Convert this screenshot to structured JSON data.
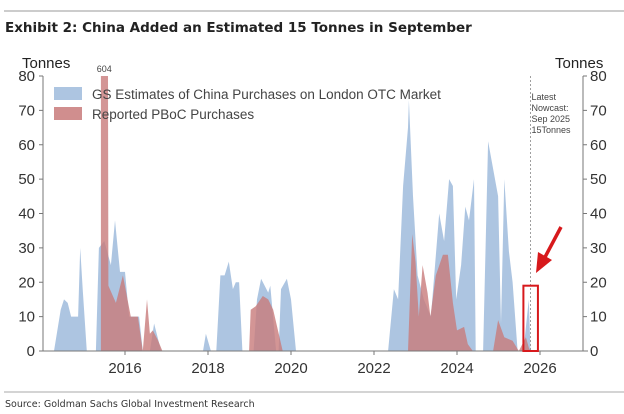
{
  "chart_data": {
    "type": "area",
    "title": "Exhibit 2: China Added an Estimated 15 Tonnes in September",
    "source": "Source: Goldman Sachs Global Investment Research",
    "ylabel_left": "Tonnes",
    "ylabel_right": "Tonnes",
    "xlim": [
      2014,
      2027
    ],
    "ylim": [
      0,
      80
    ],
    "xticks": [
      "2016",
      "2018",
      "2020",
      "2022",
      "2024",
      "2026"
    ],
    "yticks": [
      "0",
      "10",
      "20",
      "30",
      "40",
      "50",
      "60",
      "70",
      "80"
    ],
    "grid": false,
    "legend_placement": "top-left",
    "colors": {
      "gs": "#9fbbdc",
      "pboc": "#c87a7a",
      "highlight": "#d7191c"
    },
    "series": [
      {
        "name": "GS Estimates of China Purchases on London OTC Market",
        "points": [
          [
            2014.29,
            0
          ],
          [
            2014.45,
            12
          ],
          [
            2014.53,
            15
          ],
          [
            2014.62,
            14
          ],
          [
            2014.7,
            10
          ],
          [
            2014.87,
            10
          ],
          [
            2014.92,
            30
          ],
          [
            2014.98,
            18
          ],
          [
            2015.08,
            0
          ],
          [
            2015.3,
            0
          ],
          [
            2015.37,
            30
          ],
          [
            2015.5,
            32
          ],
          [
            2015.66,
            25
          ],
          [
            2015.76,
            38
          ],
          [
            2015.88,
            23
          ],
          [
            2016.0,
            23
          ],
          [
            2016.1,
            10
          ],
          [
            2016.34,
            10
          ],
          [
            2016.43,
            0
          ],
          [
            2016.6,
            0
          ],
          [
            2016.7,
            8
          ],
          [
            2016.87,
            0
          ],
          [
            2017.88,
            0
          ],
          [
            2017.95,
            5
          ],
          [
            2018.07,
            0
          ],
          [
            2018.2,
            0
          ],
          [
            2018.3,
            22
          ],
          [
            2018.4,
            22
          ],
          [
            2018.5,
            26
          ],
          [
            2018.6,
            18
          ],
          [
            2018.67,
            20
          ],
          [
            2018.75,
            20
          ],
          [
            2018.83,
            0
          ],
          [
            2019.1,
            0
          ],
          [
            2019.18,
            15
          ],
          [
            2019.28,
            21
          ],
          [
            2019.45,
            17
          ],
          [
            2019.5,
            19
          ],
          [
            2019.64,
            0
          ],
          [
            2019.7,
            0
          ],
          [
            2019.76,
            18
          ],
          [
            2019.9,
            21
          ],
          [
            2020.0,
            15
          ],
          [
            2020.12,
            0
          ],
          [
            2022.34,
            0
          ],
          [
            2022.48,
            18
          ],
          [
            2022.58,
            15
          ],
          [
            2022.7,
            48
          ],
          [
            2022.82,
            65
          ],
          [
            2022.84,
            73
          ],
          [
            2022.94,
            45
          ],
          [
            2023.05,
            22
          ],
          [
            2023.2,
            15
          ],
          [
            2023.37,
            10
          ],
          [
            2023.57,
            40
          ],
          [
            2023.69,
            32
          ],
          [
            2023.81,
            50
          ],
          [
            2023.9,
            48
          ],
          [
            2023.98,
            15
          ],
          [
            2024.1,
            25
          ],
          [
            2024.2,
            42
          ],
          [
            2024.29,
            38
          ],
          [
            2024.41,
            50
          ],
          [
            2024.45,
            0
          ],
          [
            2024.63,
            0
          ],
          [
            2024.75,
            61
          ],
          [
            2024.99,
            45
          ],
          [
            2025.06,
            8
          ],
          [
            2025.14,
            50
          ],
          [
            2025.25,
            29
          ],
          [
            2025.34,
            20
          ],
          [
            2025.46,
            0
          ],
          [
            2025.6,
            0
          ],
          [
            2025.73,
            15
          ],
          [
            2025.77,
            0
          ]
        ]
      },
      {
        "name": "Reported PBoC Purchases",
        "points": [
          [
            2015.42,
            0
          ],
          [
            2015.42,
            80
          ],
          [
            2015.59,
            80
          ],
          [
            2015.6,
            19
          ],
          [
            2015.78,
            14
          ],
          [
            2015.95,
            22
          ],
          [
            2016.14,
            10
          ],
          [
            2016.31,
            10
          ],
          [
            2016.43,
            0
          ],
          [
            2016.53,
            15
          ],
          [
            2016.6,
            5
          ],
          [
            2016.67,
            6
          ],
          [
            2016.8,
            3
          ],
          [
            2016.9,
            0
          ],
          [
            2018.99,
            0
          ],
          [
            2019.03,
            12
          ],
          [
            2019.15,
            13
          ],
          [
            2019.32,
            16
          ],
          [
            2019.45,
            15
          ],
          [
            2019.57,
            12
          ],
          [
            2019.8,
            0
          ],
          [
            2022.82,
            0
          ],
          [
            2022.92,
            34
          ],
          [
            2023.0,
            26
          ],
          [
            2023.08,
            10
          ],
          [
            2023.17,
            25
          ],
          [
            2023.29,
            17
          ],
          [
            2023.36,
            10
          ],
          [
            2023.49,
            22
          ],
          [
            2023.66,
            28
          ],
          [
            2023.78,
            28
          ],
          [
            2023.9,
            14
          ],
          [
            2024.0,
            6
          ],
          [
            2024.17,
            7
          ],
          [
            2024.26,
            2
          ],
          [
            2024.38,
            0
          ],
          [
            2024.87,
            0
          ],
          [
            2024.99,
            9
          ],
          [
            2025.14,
            4
          ],
          [
            2025.34,
            3
          ],
          [
            2025.49,
            0
          ],
          [
            2025.66,
            4
          ],
          [
            2025.73,
            1
          ],
          [
            2025.77,
            0
          ]
        ]
      }
    ],
    "annotations": {
      "spike_label": "604",
      "spike_x": 2015.5,
      "nowcast_line_x": 2025.77,
      "nowcast_lines": [
        "Latest",
        "Nowcast:",
        "Sep 2025",
        "15Tonnes"
      ],
      "highlight_box": {
        "x_from": 2025.6,
        "x_to": 2025.95,
        "y_from": 0,
        "y_to": 19
      }
    }
  }
}
